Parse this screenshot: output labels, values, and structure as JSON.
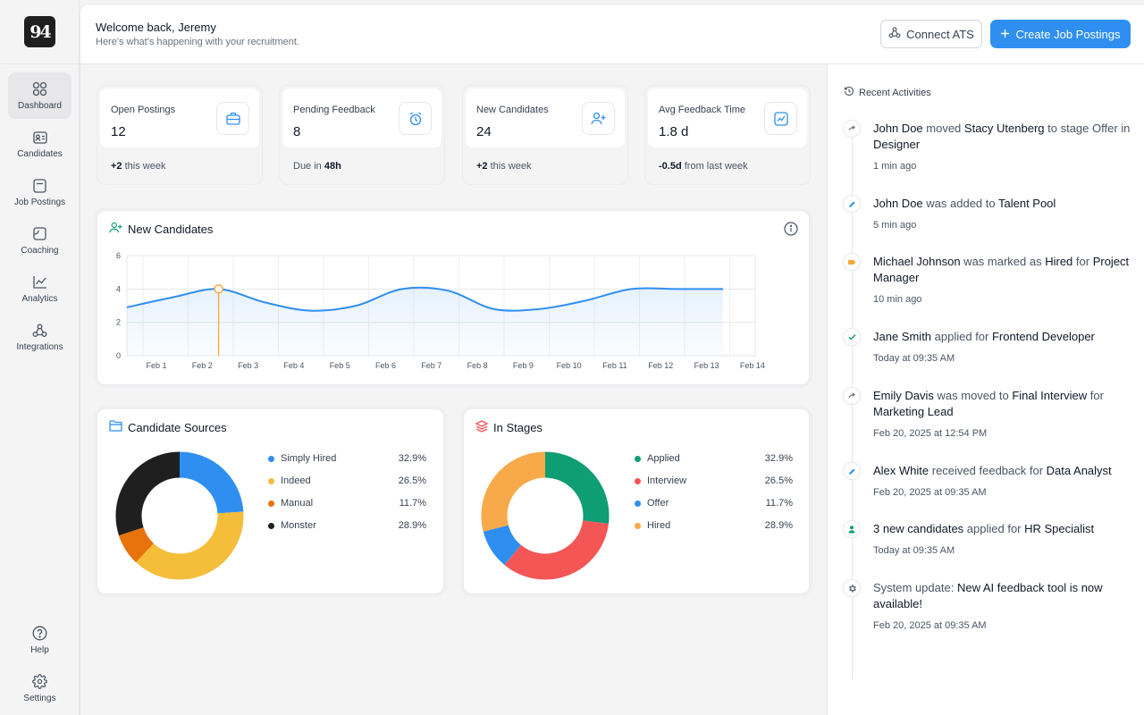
{
  "sidebar": {
    "logo": "94",
    "items": [
      {
        "label": "Dashboard",
        "icon": "grid-icon"
      },
      {
        "label": "Candidates",
        "icon": "id-card-icon"
      },
      {
        "label": "Job Postings",
        "icon": "document-icon"
      },
      {
        "label": "Coaching",
        "icon": "chat-icon"
      },
      {
        "label": "Analytics",
        "icon": "line-chart-icon"
      },
      {
        "label": "Integrations",
        "icon": "integrations-icon"
      }
    ],
    "bottom": [
      {
        "label": "Help",
        "icon": "help-icon"
      },
      {
        "label": "Settings",
        "icon": "gear-icon"
      }
    ]
  },
  "header": {
    "greeting": "Welcome back, Jeremy",
    "subtitle": "Here's what's happening with your recruitment.",
    "connect_label": "Connect ATS",
    "create_label": "Create Job Postings"
  },
  "stats": [
    {
      "label": "Open Postings",
      "value": "12",
      "foot_bold": "+2",
      "foot_text": " this week",
      "foot_prefix": "",
      "icon": "briefcase-icon"
    },
    {
      "label": "Pending Feedback",
      "value": "8",
      "foot_prefix": "Due in ",
      "foot_bold": "48h",
      "foot_text": "",
      "icon": "alarm-clock-icon"
    },
    {
      "label": "New Candidates",
      "value": "24",
      "foot_bold": "+2",
      "foot_text": " this week",
      "foot_prefix": "",
      "icon": "user-plus-icon"
    },
    {
      "label": "Avg Feedback Time",
      "value": "1.8 d",
      "foot_bold": "-0.5d",
      "foot_text": " from last week",
      "foot_prefix": "",
      "icon": "trend-chart-icon"
    }
  ],
  "new_candidates_chart": {
    "title": "New Candidates",
    "chart_data": {
      "type": "area",
      "x": [
        "Feb 1",
        "Feb 2",
        "Feb 3",
        "Feb 4",
        "Feb 5",
        "Feb 6",
        "Feb 7",
        "Feb 8",
        "Feb 9",
        "Feb 10",
        "Feb 11",
        "Feb 12",
        "Feb 13",
        "Feb 14"
      ],
      "values": [
        2.9,
        3.5,
        4.0,
        3.2,
        2.7,
        3.0,
        4.0,
        3.9,
        2.8,
        2.8,
        3.3,
        4.0,
        4.0,
        4.0
      ],
      "yticks": [
        0,
        2,
        4,
        6
      ],
      "ylim": [
        0,
        6
      ],
      "highlight_index": 2,
      "color": "#2f8ff1",
      "highlight_color": "#f5a93a",
      "grid": true
    }
  },
  "sources": {
    "title": "Candidate Sources",
    "chart_data": {
      "type": "pie",
      "categories": [
        "Simply Hired",
        "Indeed",
        "Manual",
        "Monster"
      ],
      "values": [
        32.9,
        26.5,
        11.7,
        28.9
      ],
      "labels": [
        "32.9%",
        "26.5%",
        "11.7%",
        "28.9%"
      ],
      "colors": [
        "#2f8ff1",
        "#f4bd3a",
        "#e8720c",
        "#1f1f1f"
      ],
      "donut_values": [
        24,
        38,
        8,
        30
      ]
    }
  },
  "stages": {
    "title": "In Stages",
    "chart_data": {
      "type": "pie",
      "categories": [
        "Applied",
        "Interview",
        "Offer",
        "Hired"
      ],
      "values": [
        32.9,
        26.5,
        11.7,
        28.9
      ],
      "labels": [
        "32.9%",
        "26.5%",
        "11.7%",
        "28.9%"
      ],
      "colors": [
        "#0f9d74",
        "#f45656",
        "#2f8ff1",
        "#f8a94a"
      ],
      "donut_values": [
        27,
        34,
        10,
        29
      ]
    }
  },
  "activities": {
    "title": "Recent Activities",
    "items": [
      {
        "icon": "arrow-right-icon",
        "icon_color": "#6b7280",
        "parts": [
          [
            "s",
            "John Doe"
          ],
          [
            "n",
            " moved "
          ],
          [
            "s",
            "Stacy Utenberg"
          ],
          [
            "n",
            " to stage Offer in "
          ],
          [
            "s",
            "Designer"
          ]
        ],
        "time": "1 min ago"
      },
      {
        "icon": "pencil-icon",
        "icon_color": "#2f8ff1",
        "parts": [
          [
            "s",
            "John Doe"
          ],
          [
            "n",
            " was added to "
          ],
          [
            "s",
            "Talent Pool"
          ]
        ],
        "time": "5 min ago"
      },
      {
        "icon": "tag-icon",
        "icon_color": "#f5a93a",
        "parts": [
          [
            "s",
            "Michael Johnson"
          ],
          [
            "n",
            " was marked as "
          ],
          [
            "s",
            "Hired"
          ],
          [
            "n",
            " for "
          ],
          [
            "s",
            "Project Manager"
          ]
        ],
        "time": "10 min ago"
      },
      {
        "icon": "check-icon",
        "icon_color": "#0f9d74",
        "parts": [
          [
            "s",
            "Jane Smith"
          ],
          [
            "n",
            " applied for "
          ],
          [
            "s",
            "Frontend Developer"
          ]
        ],
        "time": "Today at 09:35 AM"
      },
      {
        "icon": "arrow-right-icon",
        "icon_color": "#6b7280",
        "parts": [
          [
            "s",
            "Emily Davis"
          ],
          [
            "n",
            " was moved to "
          ],
          [
            "s",
            "Final Interview"
          ],
          [
            "n",
            " for "
          ],
          [
            "s",
            "Marketing Lead"
          ]
        ],
        "time": "Feb 20, 2025 at 12:54 PM"
      },
      {
        "icon": "pencil-icon",
        "icon_color": "#2f8ff1",
        "parts": [
          [
            "s",
            "Alex White"
          ],
          [
            "n",
            " received feedback for "
          ],
          [
            "s",
            "Data Analyst"
          ]
        ],
        "time": "Feb 20, 2025 at 09:35 AM"
      },
      {
        "icon": "user-icon",
        "icon_color": "#0f9d74",
        "parts": [
          [
            "s",
            "3 new candidates"
          ],
          [
            "n",
            " applied for "
          ],
          [
            "s",
            "HR Specialist"
          ]
        ],
        "time": "Today at 09:35 AM"
      },
      {
        "icon": "gear-icon",
        "icon_color": "#6b7280",
        "parts": [
          [
            "n",
            "System update: "
          ],
          [
            "s",
            "New AI feedback tool is now available!"
          ]
        ],
        "time": "Feb 20, 2025 at 09:35 AM"
      }
    ]
  }
}
